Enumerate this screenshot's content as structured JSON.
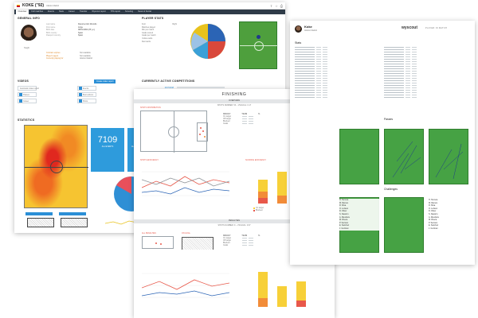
{
  "main": {
    "topbar": {
      "player_title": "KOKE (\"92)",
      "team": "Atlético Madrid"
    },
    "tabs": [
      "Overview",
      "Full matches",
      "Events",
      "Stats",
      "Career",
      "Transfer",
      "Wyscout report",
      "TPA report",
      "Scouting",
      "News & Social"
    ],
    "general_info": {
      "title": "GENERAL INFO",
      "labels": [
        "Last name",
        "First name",
        "Birth date",
        "Birth country",
        "Passport country"
      ],
      "values": [
        "Resurrección Merodio",
        "Jorge",
        "08/01/1992 (25 y.o.)",
        "Spain",
        "Spain"
      ],
      "height": "Height",
      "contract_labels": [
        "Contract expires",
        "Player's agent",
        "Currently playing for"
      ],
      "contract_values": [
        "Not available",
        "Not available",
        "Atlético Madrid"
      ]
    },
    "player_stats": {
      "title": "PLAYER STATS",
      "labels": [
        "Foot",
        "Matches played",
        "Min per match",
        "Goals scored",
        "Goals per match",
        "Yellow cards",
        "Red cards"
      ],
      "values": [
        "Right",
        "",
        "",
        "",
        "",
        "",
        ""
      ]
    },
    "videos": {
      "title": "VIDEOS",
      "create_btn": "Create video report",
      "items": [
        "Automatic video report",
        "Events",
        "Passes",
        "Best actions",
        "Career",
        "Shots"
      ]
    },
    "competitions": {
      "title": "CURRENTLY ACTIVE COMPETITIONS",
      "seasons": [
        "2017/2018",
        "2017/2018",
        "2017/2018",
        "2017/2018",
        "2017/2018",
        "2017/2018",
        "2017/2018"
      ]
    },
    "statistics": {
      "title": "STATISTICS",
      "kpi1_value": "7109",
      "kpi1_label": "ALL EVENTS",
      "kpi2_value": "117.7",
      "kpi2_label": "ALL EVENTS / PLAYERS / 90"
    },
    "pie_legend": [
      "Successful",
      "Unsuccessful"
    ]
  },
  "report": {
    "title": "FINISHING",
    "band1": "OVERVIEW",
    "band2": "PENALTIES",
    "sub1": "SHOTS NUMBER: 53 – VS/GOAL: 0.17",
    "sub2": "SHOTS NUMBER: 9 – VS/GOAL: 0.67",
    "sec_shots_dist": "SHOTS DISTRIBUTION",
    "sec_shots_eff": "SHOTS EFFICIENCY",
    "sec_scoring_eff": "SCORING EFFICIENCY",
    "sec_all_penalties": "ALL PENALTIES",
    "sec_on_goal": "ON GOAL",
    "table_headers": [
      "RESULT",
      "TEAM",
      "%"
    ],
    "table_rows": [
      "On target",
      "Off target",
      "Blocked",
      "Goals"
    ],
    "legend": [
      "On target",
      "Off target",
      "Blocked",
      "Goals"
    ],
    "colors": {
      "on_target": "#f7d038",
      "off_target": "#f28c38",
      "blocked": "#e8584a",
      "goals": "#d14a35"
    }
  },
  "right": {
    "player": "Koke",
    "club": "Atlético Madrid",
    "brand": "wyscout",
    "brand_sub": "PLAYER IN MATCH",
    "stats_title": "Stats",
    "passes_title": "Passes",
    "challenges_title": "Challenges",
    "pass_legend": [
      "Passes",
      "Accurate",
      "Inaccurate"
    ],
    "pass_sub": [
      "PASS MAP",
      "BEST PASSES"
    ],
    "chal_sub": "CHALLENGES MAP",
    "players": [
      "H. Herrera",
      "M. Ramos",
      "R. Silva",
      "O. Lozano",
      "D. Oliver",
      "S. Navarro",
      "A. Mendoza",
      "M. Rivera",
      "P. Serrano",
      "E. Sanchez",
      "J. Guzman"
    ]
  }
}
